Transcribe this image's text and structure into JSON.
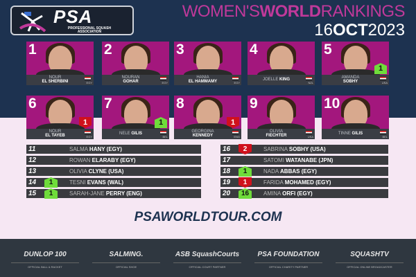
{
  "header": {
    "logo": {
      "mark": "PSA",
      "subtitle": "PROFESSIONAL SQUASH ASSOCIATION"
    },
    "title_pre": "WOMEN'S",
    "title_bold": "WORLD",
    "title_post": "RANKINGS",
    "date_day": "16",
    "date_month": "OCT",
    "date_year": "2023"
  },
  "top10": [
    {
      "rank": "1",
      "first": "NOUR",
      "last": "EL SHERBINI",
      "country": "EGY"
    },
    {
      "rank": "2",
      "first": "NOURAN",
      "last": "GOHAR",
      "country": "EGY"
    },
    {
      "rank": "3",
      "first": "HANIA",
      "last": "EL HAMMAMY",
      "country": "EGY"
    },
    {
      "rank": "4",
      "first": "JOELLE",
      "last": "KING",
      "country": "NZL",
      "inline": true
    },
    {
      "rank": "5",
      "first": "AMANDA",
      "last": "SOBHY",
      "country": "USA",
      "move": "1",
      "dir": "up"
    },
    {
      "rank": "6",
      "first": "NOUR",
      "last": "EL TAYEB",
      "country": "EGY",
      "move": "1",
      "dir": "down"
    },
    {
      "rank": "7",
      "first": "NELE",
      "last": "GILIS",
      "country": "BEL",
      "move": "1",
      "dir": "up",
      "inline": true
    },
    {
      "rank": "8",
      "first": "GEORGINA",
      "last": "KENNEDY",
      "country": "ENG",
      "move": "1",
      "dir": "down"
    },
    {
      "rank": "9",
      "first": "OLIVIA",
      "last": "FIECHTER",
      "country": "USA"
    },
    {
      "rank": "10",
      "first": "TINNE",
      "last": "GILIS",
      "country": "BEL",
      "inline": true
    }
  ],
  "list": [
    {
      "rank": "11",
      "first": "SALMA",
      "last": "HANY (EGY)"
    },
    {
      "rank": "12",
      "first": "ROWAN",
      "last": "ELARABY (EGY)"
    },
    {
      "rank": "13",
      "first": "OLIVIA",
      "last": "CLYNE (USA)"
    },
    {
      "rank": "14",
      "first": "TESNI",
      "last": "EVANS (WAL)",
      "move": "1",
      "dir": "up"
    },
    {
      "rank": "15",
      "first": "SARAH-JANE",
      "last": "PERRY (ENG)",
      "move": "1",
      "dir": "up"
    },
    {
      "rank": "16",
      "first": "SABRINA",
      "last": "SOBHY (USA)",
      "move": "2",
      "dir": "down"
    },
    {
      "rank": "17",
      "first": "SATOMI",
      "last": "WATANABE (JPN)"
    },
    {
      "rank": "18",
      "first": "NADA",
      "last": "ABBAS (EGY)",
      "move": "1",
      "dir": "up"
    },
    {
      "rank": "19",
      "first": "FARIDA",
      "last": "MOHAMED (EGY)",
      "move": "1",
      "dir": "down"
    },
    {
      "rank": "20",
      "first": "AMINA",
      "last": "ORFI (EGY)",
      "move": "16",
      "dir": "up"
    }
  ],
  "url": "PSAWORLDTOUR.COM",
  "sponsors": [
    {
      "name": "DUNLOP 100",
      "label": "OFFICIAL BALL & RACKET"
    },
    {
      "name": "SALMING.",
      "label": "OFFICIAL SHOE"
    },
    {
      "name": "ASB SquashCourts",
      "label": "OFFICIAL COURT PARTNER"
    },
    {
      "name": "PSA FOUNDATION",
      "label": "OFFICIAL CHARITY PARTNER"
    },
    {
      "name": "SQUASHTV",
      "label": "OFFICIAL ONLINE BROADCASTER"
    }
  ],
  "colors": {
    "navy": "#1d3250",
    "magenta": "#a3177d",
    "up": "#6fdc3a",
    "down": "#d0111c"
  }
}
